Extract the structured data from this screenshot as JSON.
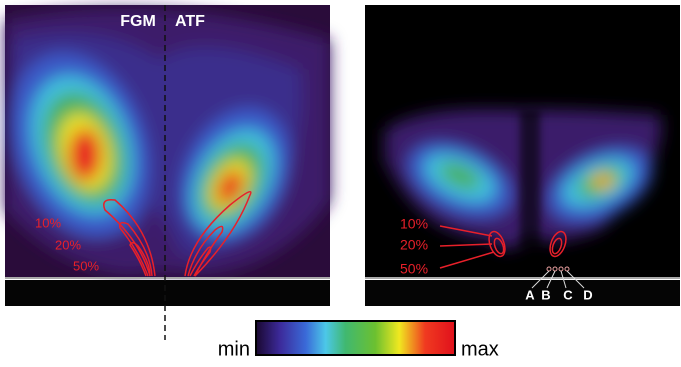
{
  "left_panel": {
    "labels": [
      "FGM",
      "ATF"
    ],
    "contours": [
      "10%",
      "20%",
      "50%"
    ]
  },
  "right_panel": {
    "contours": [
      "10%",
      "20%",
      "50%"
    ],
    "points": [
      "A",
      "B",
      "C",
      "D"
    ]
  },
  "colorbar": {
    "min": "min",
    "max": "max"
  }
}
